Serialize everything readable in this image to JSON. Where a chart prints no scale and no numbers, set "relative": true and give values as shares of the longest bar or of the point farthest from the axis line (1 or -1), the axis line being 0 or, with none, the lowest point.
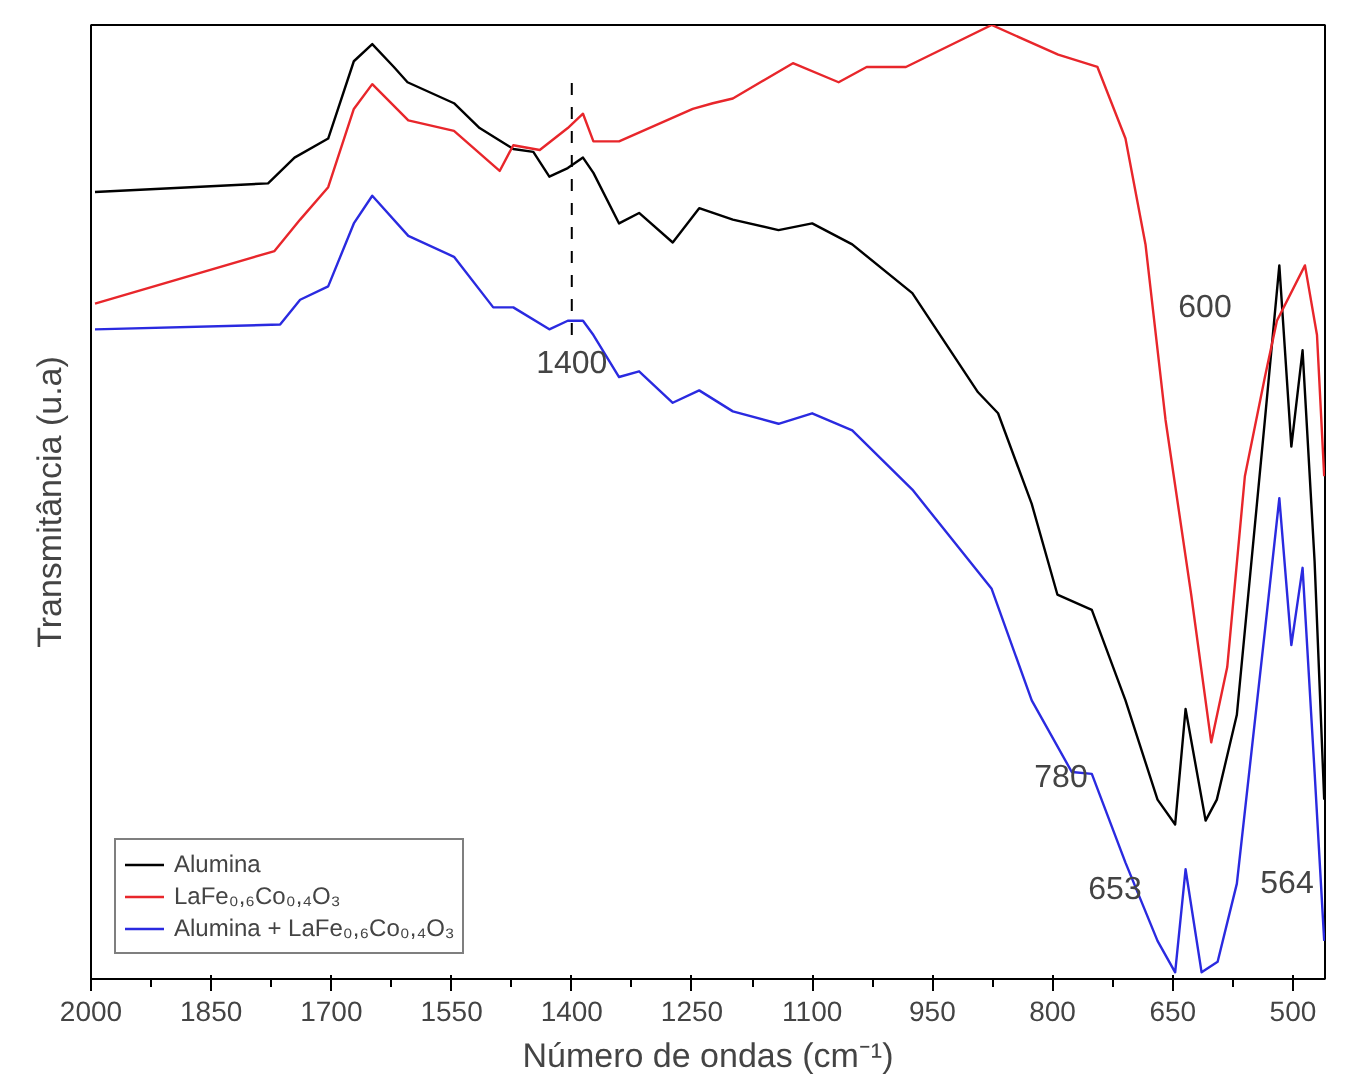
{
  "chart_data": {
    "type": "line",
    "xlabel": "Número de ondas (cm⁻¹)",
    "ylabel": "Transmitância (u.a)",
    "relative": true,
    "xlim": [
      2000,
      460
    ],
    "xticks": [
      2000,
      1850,
      1700,
      1550,
      1400,
      1250,
      1100,
      950,
      800,
      650,
      500
    ],
    "grid": false,
    "legend": "bottom left",
    "tick_labels": "x",
    "series": [
      {
        "name": "Alumina",
        "color": "#000000",
        "x": [
          1995,
          1779,
          1746,
          1704,
          1672,
          1649,
          1622,
          1605,
          1547,
          1515,
          1490,
          1473,
          1448,
          1428,
          1405,
          1386,
          1373,
          1341,
          1316,
          1274,
          1241,
          1199,
          1142,
          1100,
          1050,
          975,
          893,
          868,
          826,
          794,
          751,
          709,
          669,
          647,
          634,
          609,
          595,
          570,
          535,
          517,
          502,
          488,
          473,
          461
        ],
        "values": [
          0.825,
          0.834,
          0.861,
          0.881,
          0.962,
          0.98,
          0.956,
          0.94,
          0.918,
          0.892,
          0.879,
          0.87,
          0.867,
          0.841,
          0.85,
          0.861,
          0.845,
          0.792,
          0.803,
          0.772,
          0.808,
          0.796,
          0.785,
          0.792,
          0.77,
          0.719,
          0.615,
          0.593,
          0.498,
          0.403,
          0.387,
          0.292,
          0.188,
          0.162,
          0.283,
          0.166,
          0.188,
          0.277,
          0.586,
          0.748,
          0.558,
          0.659,
          0.438,
          0.188
        ]
      },
      {
        "name": "LaFe₀,₆Co₀,₄O₃",
        "color": "#e8262b",
        "x": [
          1995,
          1771,
          1739,
          1704,
          1672,
          1649,
          1604,
          1547,
          1490,
          1473,
          1440,
          1405,
          1386,
          1373,
          1341,
          1249,
          1224,
          1199,
          1124,
          1067,
          1032,
          983,
          876,
          793,
          744,
          709,
          684,
          659,
          627,
          602,
          582,
          560,
          535,
          520,
          485,
          470,
          461
        ],
        "values": [
          0.708,
          0.763,
          0.796,
          0.83,
          0.912,
          0.938,
          0.9,
          0.889,
          0.847,
          0.874,
          0.869,
          0.892,
          0.907,
          0.878,
          0.878,
          0.912,
          0.918,
          0.923,
          0.96,
          0.94,
          0.956,
          0.956,
          1.0,
          0.969,
          0.956,
          0.881,
          0.77,
          0.586,
          0.403,
          0.248,
          0.327,
          0.527,
          0.631,
          0.69,
          0.748,
          0.675,
          0.527
        ]
      },
      {
        "name": "Alumina + LaFe₀,₆Co₀,₄O₃",
        "color": "#2a2ae0",
        "x": [
          1995,
          1764,
          1739,
          1704,
          1672,
          1649,
          1604,
          1547,
          1498,
          1473,
          1428,
          1405,
          1386,
          1373,
          1341,
          1316,
          1274,
          1241,
          1199,
          1142,
          1100,
          1050,
          975,
          876,
          826,
          776,
          751,
          709,
          669,
          647,
          634,
          614,
          594,
          570,
          535,
          517,
          502,
          488,
          473,
          461
        ],
        "values": [
          0.681,
          0.686,
          0.712,
          0.726,
          0.792,
          0.821,
          0.779,
          0.757,
          0.704,
          0.704,
          0.681,
          0.69,
          0.69,
          0.675,
          0.631,
          0.637,
          0.604,
          0.617,
          0.595,
          0.582,
          0.593,
          0.575,
          0.513,
          0.409,
          0.292,
          0.217,
          0.215,
          0.122,
          0.04,
          0.007,
          0.115,
          0.007,
          0.018,
          0.1,
          0.365,
          0.504,
          0.35,
          0.431,
          0.217,
          0.04
        ]
      }
    ],
    "ref_lines": [
      {
        "axis": "x",
        "value": 1400,
        "label": "1400",
        "line_style": "dashed",
        "color": "#000000"
      }
    ],
    "annotations": [
      "600",
      "780",
      "653",
      "564"
    ]
  }
}
